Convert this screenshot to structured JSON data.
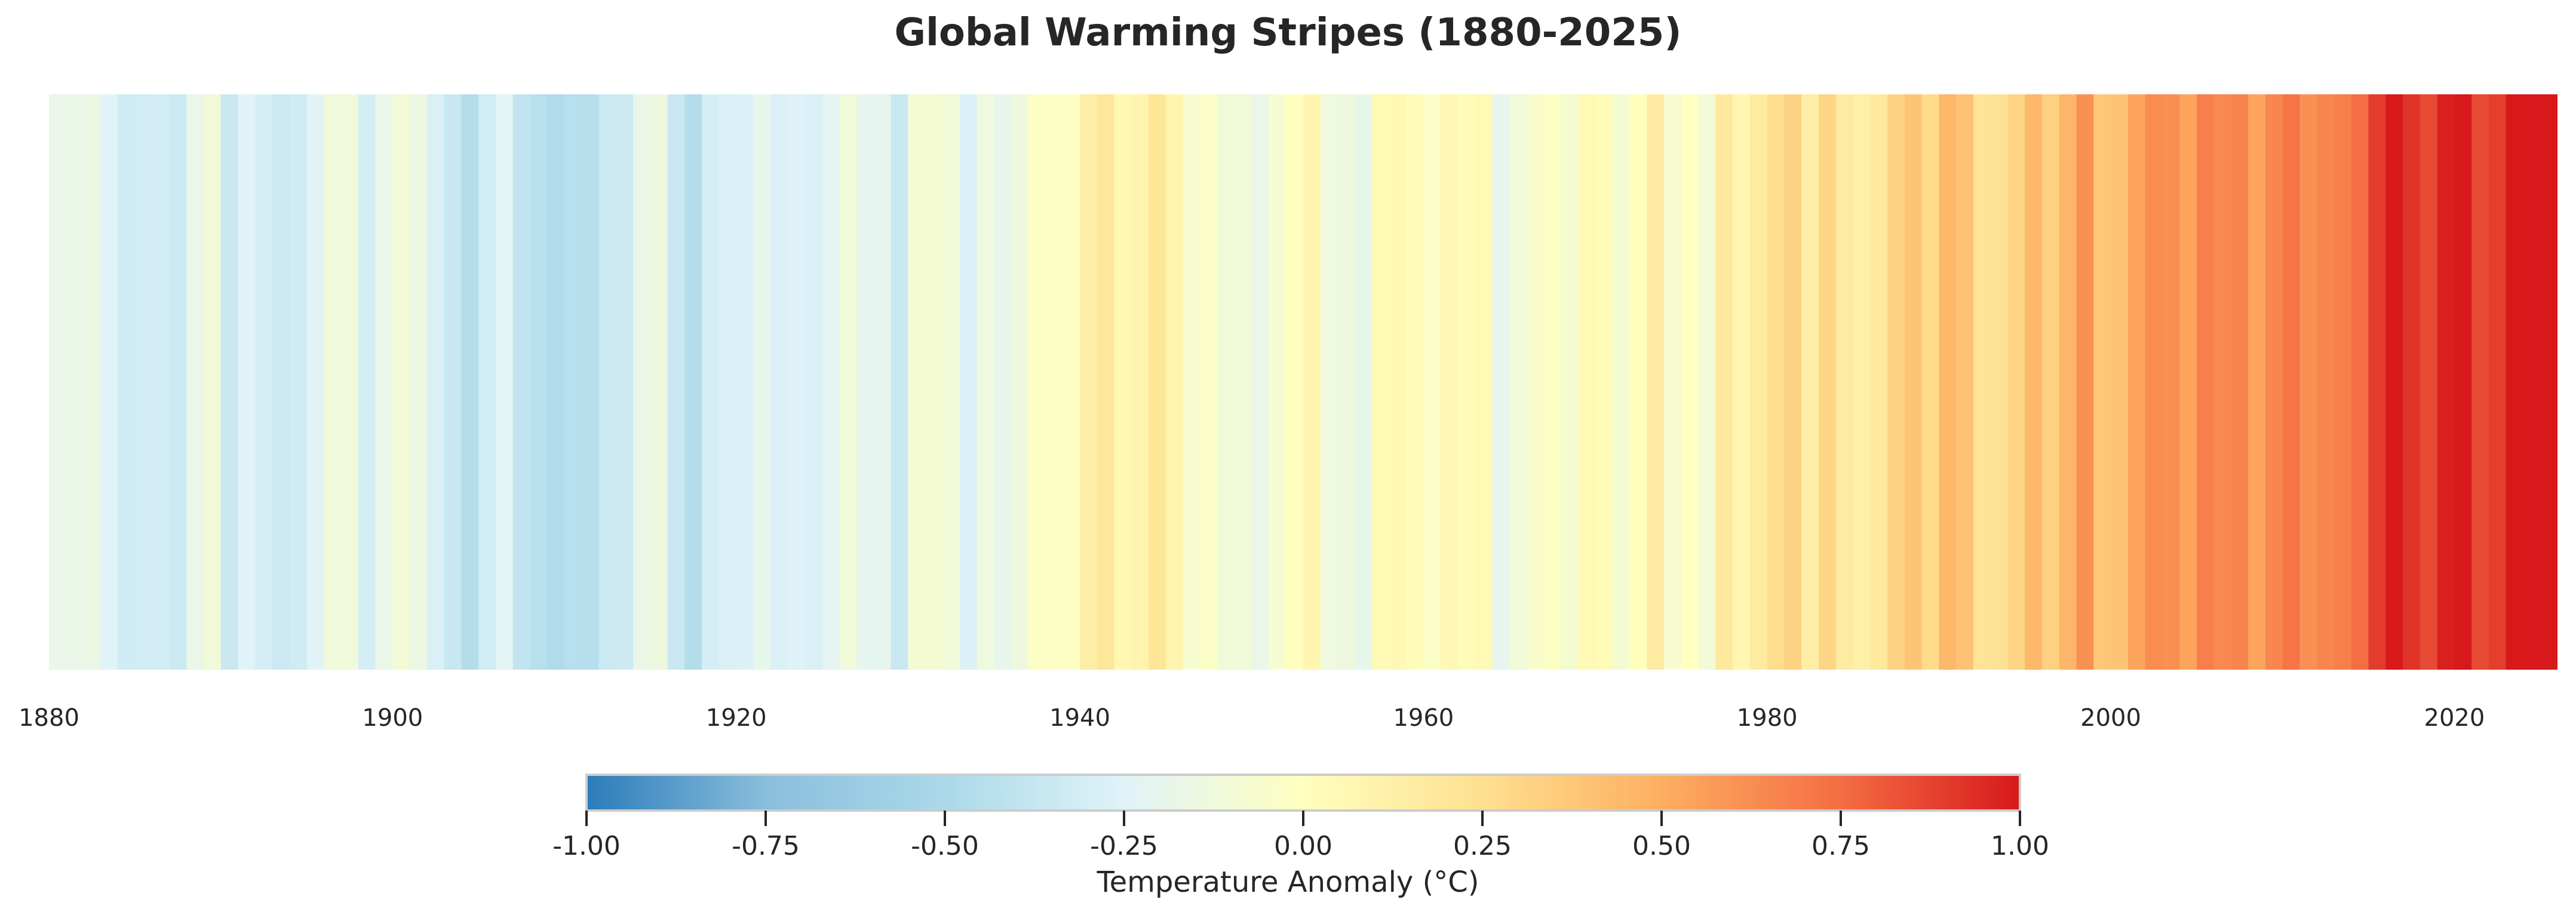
{
  "chart_data": {
    "type": "heatmap",
    "title": "Global Warming Stripes (1880-2025)",
    "start_year": 1880,
    "end_year": 2025,
    "x_ticks": [
      "1880",
      "1900",
      "1920",
      "1940",
      "1960",
      "1980",
      "2000",
      "2020"
    ],
    "years": [
      1880,
      1881,
      1882,
      1883,
      1884,
      1885,
      1886,
      1887,
      1888,
      1889,
      1890,
      1891,
      1892,
      1893,
      1894,
      1895,
      1896,
      1897,
      1898,
      1899,
      1900,
      1901,
      1902,
      1903,
      1904,
      1905,
      1906,
      1907,
      1908,
      1909,
      1910,
      1911,
      1912,
      1913,
      1914,
      1915,
      1916,
      1917,
      1918,
      1919,
      1920,
      1921,
      1922,
      1923,
      1924,
      1925,
      1926,
      1927,
      1928,
      1929,
      1930,
      1931,
      1932,
      1933,
      1934,
      1935,
      1936,
      1937,
      1938,
      1939,
      1940,
      1941,
      1942,
      1943,
      1944,
      1945,
      1946,
      1947,
      1948,
      1949,
      1950,
      1951,
      1952,
      1953,
      1954,
      1955,
      1956,
      1957,
      1958,
      1959,
      1960,
      1961,
      1962,
      1963,
      1964,
      1965,
      1966,
      1967,
      1968,
      1969,
      1970,
      1971,
      1972,
      1973,
      1974,
      1975,
      1976,
      1977,
      1978,
      1979,
      1980,
      1981,
      1982,
      1983,
      1984,
      1985,
      1986,
      1987,
      1988,
      1989,
      1990,
      1991,
      1992,
      1993,
      1994,
      1995,
      1996,
      1997,
      1998,
      1999,
      2000,
      2001,
      2002,
      2003,
      2004,
      2005,
      2006,
      2007,
      2008,
      2009,
      2010,
      2011,
      2012,
      2013,
      2014,
      2015,
      2016,
      2017,
      2018,
      2019,
      2020,
      2021,
      2022,
      2023,
      2024,
      2025
    ],
    "values": [
      -0.18,
      -0.18,
      -0.16,
      -0.25,
      -0.33,
      -0.32,
      -0.31,
      -0.35,
      -0.18,
      -0.11,
      -0.36,
      -0.25,
      -0.3,
      -0.35,
      -0.33,
      -0.24,
      -0.12,
      -0.12,
      -0.3,
      -0.18,
      -0.1,
      -0.15,
      -0.28,
      -0.37,
      -0.46,
      -0.32,
      -0.23,
      -0.39,
      -0.44,
      -0.48,
      -0.44,
      -0.45,
      -0.35,
      -0.34,
      -0.17,
      -0.14,
      -0.36,
      -0.46,
      -0.3,
      -0.28,
      -0.27,
      -0.19,
      -0.28,
      -0.26,
      -0.28,
      -0.22,
      -0.11,
      -0.21,
      -0.2,
      -0.36,
      -0.09,
      -0.08,
      -0.11,
      -0.27,
      -0.13,
      -0.19,
      -0.14,
      -0.02,
      -0.03,
      -0.02,
      0.13,
      0.19,
      0.07,
      0.09,
      0.2,
      0.09,
      -0.07,
      -0.03,
      -0.11,
      -0.11,
      -0.18,
      -0.07,
      0.01,
      0.08,
      -0.13,
      -0.14,
      -0.19,
      0.05,
      0.06,
      0.03,
      -0.03,
      0.06,
      0.03,
      0.05,
      -0.2,
      -0.11,
      -0.06,
      -0.02,
      -0.08,
      0.05,
      0.03,
      -0.08,
      0.01,
      0.16,
      -0.07,
      -0.01,
      -0.1,
      0.18,
      0.07,
      0.16,
      0.26,
      0.32,
      0.14,
      0.31,
      0.16,
      0.12,
      0.18,
      0.32,
      0.39,
      0.27,
      0.45,
      0.4,
      0.22,
      0.23,
      0.31,
      0.45,
      0.33,
      0.46,
      0.61,
      0.38,
      0.39,
      0.54,
      0.63,
      0.62,
      0.54,
      0.68,
      0.64,
      0.66,
      0.54,
      0.65,
      0.72,
      0.61,
      0.65,
      0.68,
      0.75,
      0.9,
      1.01,
      0.92,
      0.85,
      0.98,
      1.02,
      0.85,
      0.89,
      1.17,
      1.29,
      1.28
    ],
    "colorbar": {
      "min": -1.0,
      "max": 1.0,
      "colormap": [
        "#2b7bba",
        "#89bedc",
        "#abd9e9",
        "#e0f3f8",
        "#ffffbf",
        "#fee090",
        "#fdae61",
        "#f46d43",
        "#d7191c"
      ],
      "ticks": [
        "-1.00",
        "-0.75",
        "-0.50",
        "-0.25",
        "0.00",
        "0.25",
        "0.50",
        "0.75",
        "1.00"
      ],
      "label": "Temperature Anomaly (°C)"
    }
  }
}
